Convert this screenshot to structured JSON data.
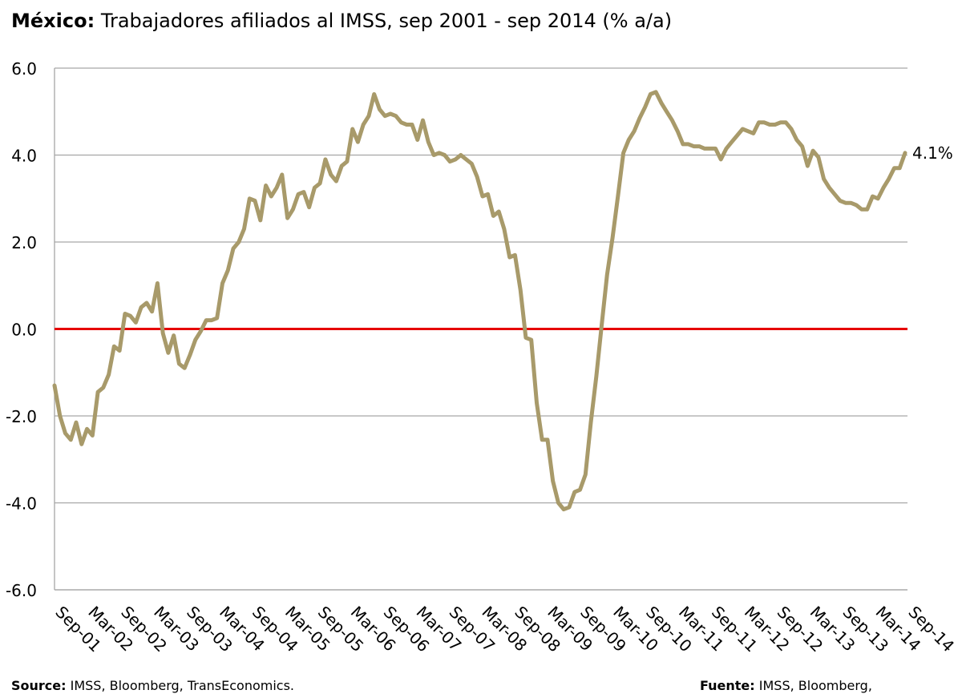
{
  "title": {
    "bold": "México:",
    "text": "Trabajadores afiliados al IMSS,  sep 2001 - sep 2014 (% a/a)"
  },
  "footer": {
    "source_label": "Source:",
    "source_text": "IMSS, Bloomberg, TransEconomics.",
    "fuente_label": "Fuente:",
    "fuente_text": "IMSS, Bloomberg,"
  },
  "colors": {
    "series": "#a89a6a",
    "zero_line": "#e60000",
    "grid": "#a6a6a6"
  },
  "chart_data": {
    "type": "line",
    "title": "México: Trabajadores afiliados al IMSS,  sep 2001 - sep 2014 (% a/a)",
    "xlabel": "",
    "ylabel": "",
    "ylim": [
      -6,
      6
    ],
    "yticks": [
      "6.0",
      "4.0",
      "2.0",
      "0.0",
      "-2.0",
      "-4.0",
      "-6.0"
    ],
    "xticks": [
      "Sep-01",
      "Mar-02",
      "Sep-02",
      "Mar-03",
      "Sep-03",
      "Mar-04",
      "Sep-04",
      "Mar-05",
      "Sep-05",
      "Mar-06",
      "Sep-06",
      "Mar-07",
      "Sep-07",
      "Mar-08",
      "Sep-08",
      "Mar-09",
      "Sep-09",
      "Mar-10",
      "Sep-10",
      "Mar-11",
      "Sep-11",
      "Mar-12",
      "Sep-12",
      "Mar-13",
      "Sep-13",
      "Mar-14",
      "Sep-14"
    ],
    "grid": true,
    "end_label": "4.1%",
    "series": [
      {
        "values": [
          -1.3,
          -2.0,
          -2.4,
          -2.55,
          -2.15,
          -2.65,
          -2.3,
          -2.45,
          -1.45,
          -1.35,
          -1.05,
          -0.4,
          -0.5,
          0.35,
          0.3,
          0.15,
          0.5,
          0.6,
          0.4,
          1.05,
          -0.1,
          -0.55,
          -0.15,
          -0.8,
          -0.9,
          -0.6,
          -0.25,
          -0.05,
          0.2,
          0.2,
          0.25,
          1.05,
          1.35,
          1.85,
          2.0,
          2.3,
          3.0,
          2.95,
          2.5,
          3.3,
          3.05,
          3.25,
          3.55,
          2.55,
          2.75,
          3.1,
          3.15,
          2.8,
          3.25,
          3.35,
          3.9,
          3.55,
          3.4,
          3.75,
          3.85,
          4.6,
          4.3,
          4.7,
          4.9,
          5.4,
          5.05,
          4.9,
          4.95,
          4.9,
          4.75,
          4.7,
          4.7,
          4.35,
          4.8,
          4.3,
          4.0,
          4.05,
          4.0,
          3.85,
          3.9,
          4.0,
          3.9,
          3.8,
          3.5,
          3.05,
          3.1,
          2.6,
          2.7,
          2.3,
          1.65,
          1.7,
          0.9,
          -0.2,
          -0.25,
          -1.7,
          -2.55,
          -2.55,
          -3.5,
          -4.0,
          -4.15,
          -4.1,
          -3.75,
          -3.7,
          -3.35,
          -2.15,
          -1.1,
          0.1,
          1.25,
          2.1,
          3.05,
          4.05,
          4.35,
          4.55,
          4.85,
          5.1,
          5.4,
          5.45,
          5.2,
          5.0,
          4.8,
          4.55,
          4.25,
          4.25,
          4.2,
          4.2,
          4.15,
          4.15,
          4.15,
          3.9,
          4.15,
          4.3,
          4.45,
          4.6,
          4.55,
          4.5,
          4.75,
          4.75,
          4.7,
          4.7,
          4.75,
          4.75,
          4.6,
          4.35,
          4.2,
          3.75,
          4.1,
          3.95,
          3.45,
          3.25,
          3.1,
          2.95,
          2.9,
          2.9,
          2.85,
          2.75,
          2.75,
          3.05,
          3.0,
          3.25,
          3.45,
          3.7,
          3.7,
          4.05
        ]
      }
    ]
  }
}
